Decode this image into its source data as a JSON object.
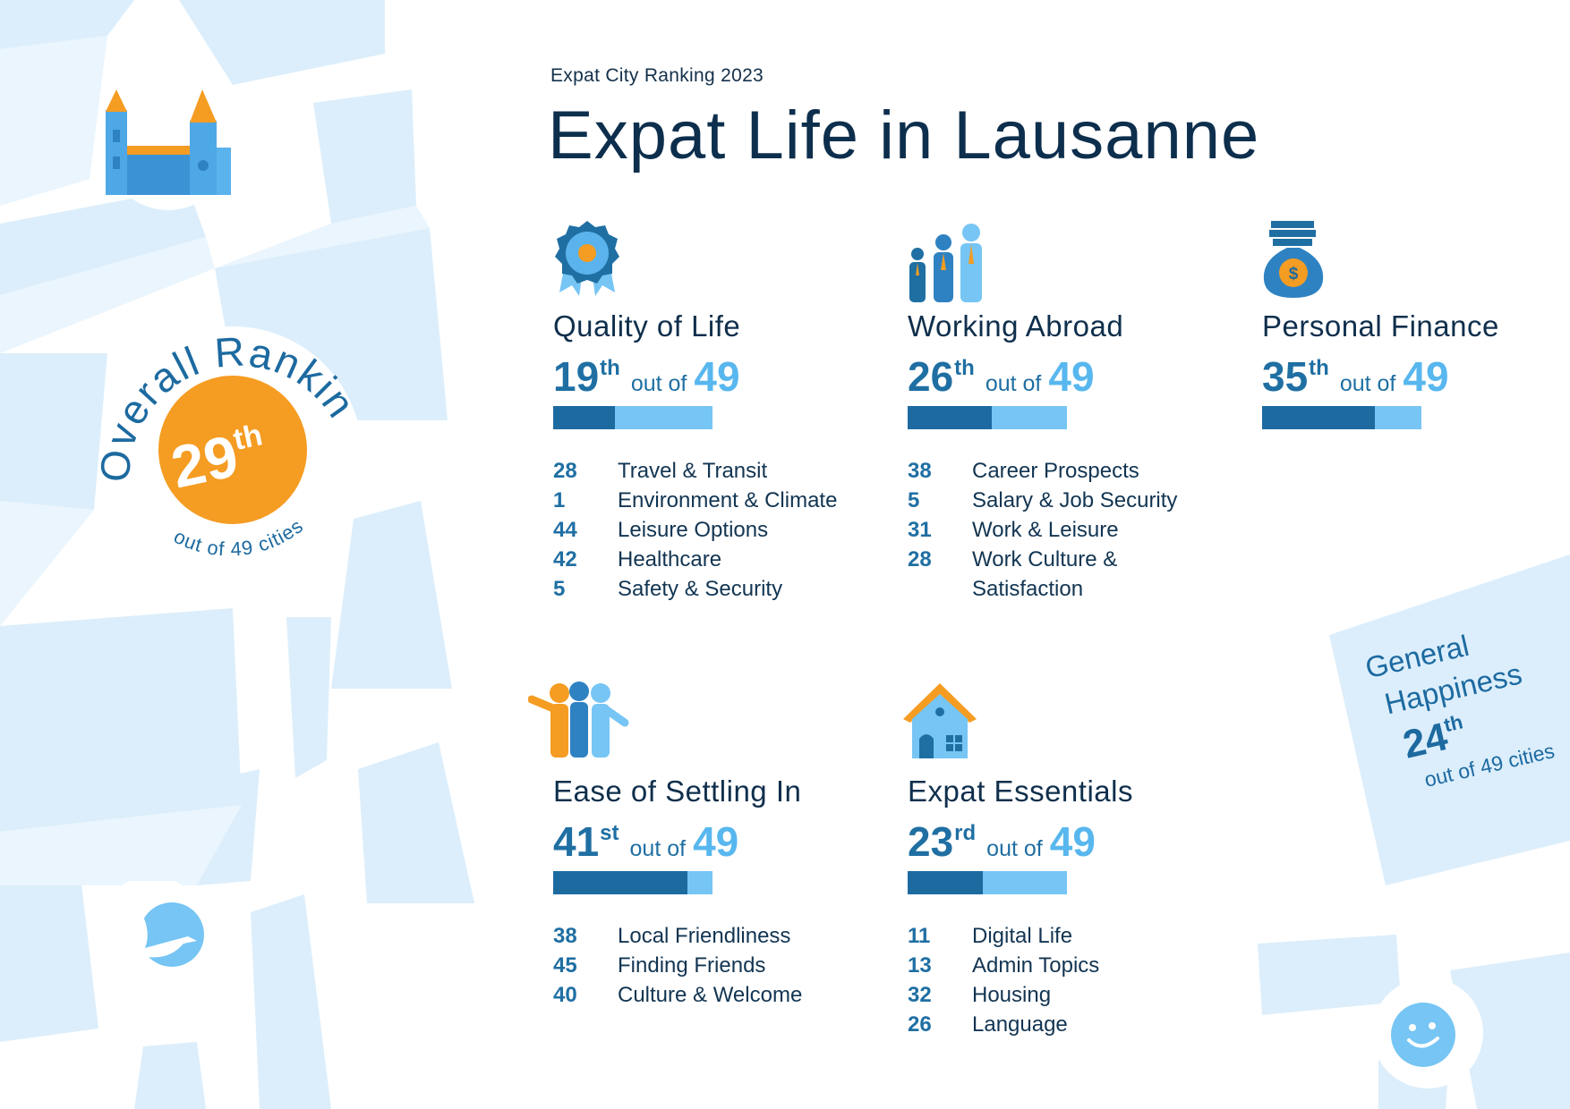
{
  "header": {
    "supertitle": "Expat City Ranking 2023",
    "title": "Expat Life in Lausanne"
  },
  "overall": {
    "label": "Overall Ranking",
    "rank": "29",
    "suffix": "th",
    "subtext": "out of 49 cities"
  },
  "general_happiness": {
    "label_line1": "General",
    "label_line2": "Happiness",
    "rank": "24",
    "suffix": "th",
    "subtext": "out of 49 cities"
  },
  "colors": {
    "dark_blue": "#1c6aa0",
    "light_blue": "#76c5f4",
    "orange": "#f59c22",
    "map_block": "#dceefb",
    "navy_text": "#0d2f4d"
  },
  "categories": [
    {
      "id": "quality-of-life",
      "icon": "award-rosette-icon",
      "title": "Quality of Life",
      "rank": "19",
      "suffix": "th",
      "out_of": "out of",
      "total": "49",
      "progress": 0.39,
      "subs": [
        {
          "value": "28",
          "label": "Travel & Transit"
        },
        {
          "value": "1",
          "label": "Environment & Climate"
        },
        {
          "value": "44",
          "label": "Leisure Options"
        },
        {
          "value": "42",
          "label": "Healthcare"
        },
        {
          "value": "5",
          "label": "Safety & Security"
        }
      ]
    },
    {
      "id": "working-abroad",
      "icon": "business-people-icon",
      "title": "Working Abroad",
      "rank": "26",
      "suffix": "th",
      "out_of": "out of",
      "total": "49",
      "progress": 0.53,
      "subs": [
        {
          "value": "38",
          "label": "Career Prospects"
        },
        {
          "value": "5",
          "label": "Salary & Job Security"
        },
        {
          "value": "31",
          "label": "Work & Leisure"
        },
        {
          "value": "28",
          "label": "Work Culture & Satisfaction"
        }
      ]
    },
    {
      "id": "personal-finance",
      "icon": "money-bag-icon",
      "title": "Personal Finance",
      "rank": "35",
      "suffix": "th",
      "out_of": "out of",
      "total": "49",
      "progress": 0.71,
      "subs": []
    },
    {
      "id": "ease-of-settling-in",
      "icon": "friends-group-icon",
      "title": "Ease of Settling In",
      "rank": "41",
      "suffix": "st",
      "out_of": "out of",
      "total": "49",
      "progress": 0.84,
      "subs": [
        {
          "value": "38",
          "label": "Local Friendliness"
        },
        {
          "value": "45",
          "label": "Finding Friends"
        },
        {
          "value": "40",
          "label": "Culture & Welcome"
        }
      ]
    },
    {
      "id": "expat-essentials",
      "icon": "house-icon",
      "title": "Expat Essentials",
      "rank": "23",
      "suffix": "rd",
      "out_of": "out of",
      "total": "49",
      "progress": 0.47,
      "subs": [
        {
          "value": "11",
          "label": "Digital Life"
        },
        {
          "value": "13",
          "label": "Admin Topics"
        },
        {
          "value": "32",
          "label": "Housing"
        },
        {
          "value": "26",
          "label": "Language"
        }
      ]
    }
  ]
}
